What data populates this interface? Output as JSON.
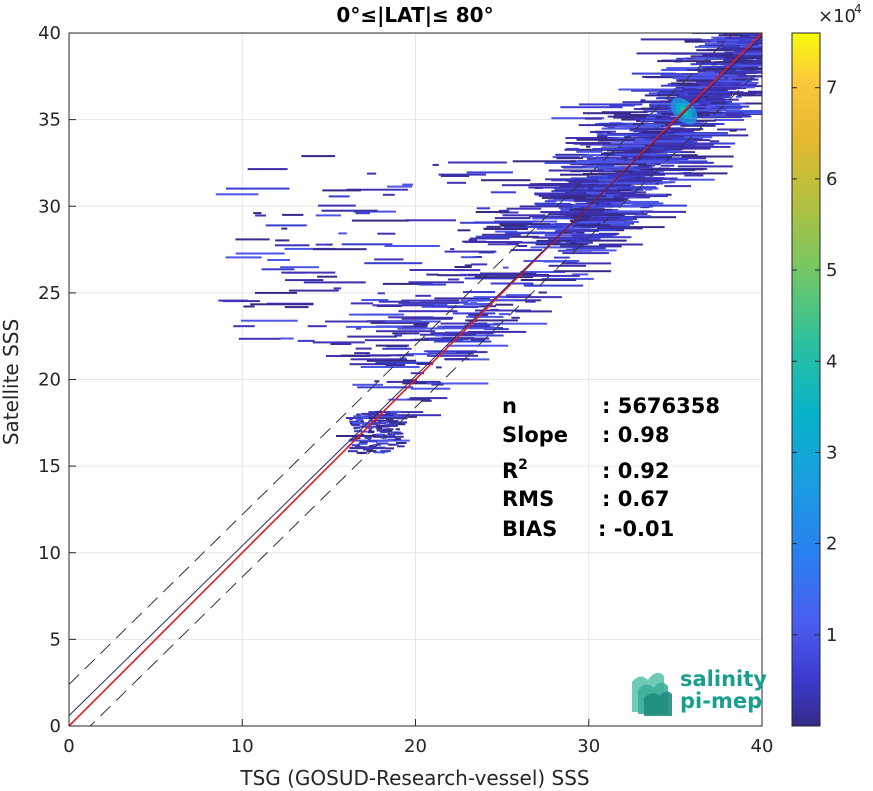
{
  "chart_data": {
    "type": "heatmap",
    "title": "0°≤|LAT|≤ 80°",
    "xlabel": "TSG (GOSUD-Research-vessel) SSS",
    "ylabel": "Satellite SSS",
    "xlim": [
      0,
      40
    ],
    "ylim": [
      0,
      40
    ],
    "x_ticks": [
      "0",
      "10",
      "20",
      "30",
      "40"
    ],
    "y_ticks": [
      "0",
      "5",
      "10",
      "15",
      "20",
      "25",
      "30",
      "35",
      "40"
    ],
    "grid": true,
    "colorbar": {
      "range": [
        0,
        76000
      ],
      "multiplier_label": "×10",
      "multiplier_exponent": "4",
      "ticks": [
        "1",
        "2",
        "3",
        "4",
        "5",
        "6",
        "7"
      ],
      "tick_values": [
        10000,
        20000,
        30000,
        40000,
        50000,
        60000,
        70000
      ],
      "colormap": "parula"
    },
    "lines": [
      {
        "kind": "identity",
        "color": "#e41a1c",
        "x": [
          0,
          40
        ],
        "y": [
          0,
          40
        ]
      },
      {
        "kind": "regression",
        "color": "#2b2b6b",
        "slope": 0.98,
        "intercept": 0.6
      },
      {
        "kind": "envelope-upper",
        "color": "#333333",
        "style": "dashed",
        "slope": 0.98,
        "intercept": 2.4
      },
      {
        "kind": "envelope-lower",
        "color": "#333333",
        "style": "dashed",
        "slope": 0.98,
        "intercept": -1.2
      }
    ],
    "density_peak": {
      "x": 35.5,
      "y": 35.5
    },
    "stats": [
      {
        "label": "n",
        "value": ": 5676358"
      },
      {
        "label": "Slope",
        "value": ": 0.98"
      },
      {
        "label": "R",
        "label_sup": "2",
        "value": ": 0.92"
      },
      {
        "label": "RMS",
        "value": ": 0.67"
      },
      {
        "label": "BIAS",
        "value": ": -0.01"
      }
    ]
  },
  "logo": {
    "line1": "salinity",
    "line2": "pi-mep"
  }
}
